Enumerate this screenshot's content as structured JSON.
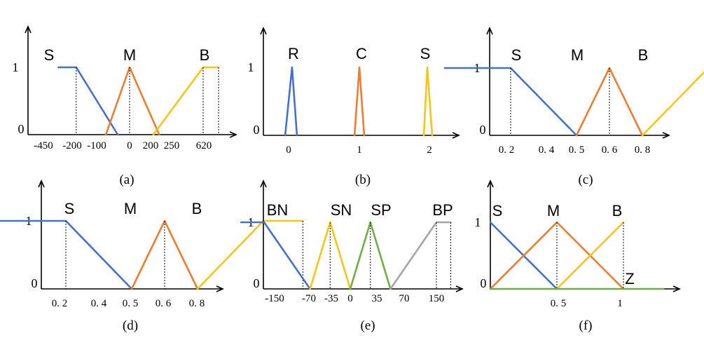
{
  "colors": {
    "blue": "#4472C4",
    "orange": "#ED7D31",
    "yellow": "#F5C518",
    "green": "#70AD47",
    "gray": "#A5A5A5"
  },
  "panels": [
    {
      "id": "a",
      "caption": "(a)",
      "y_labels": [
        "1",
        "0"
      ],
      "x_ticks": [
        "-450",
        "-200",
        "-100",
        "0",
        "200",
        "250",
        "620"
      ],
      "sets": [
        {
          "label": "S",
          "color": "blue",
          "points": [
            [
              -600,
              1
            ],
            [
              -450,
              1
            ],
            [
              -100,
              0
            ]
          ]
        },
        {
          "label": "M",
          "color": "orange",
          "points": [
            [
              -200,
              0
            ],
            [
              0,
              1
            ],
            [
              250,
              0
            ]
          ]
        },
        {
          "label": "B",
          "color": "yellow",
          "points": [
            [
              200,
              0
            ],
            [
              620,
              1
            ],
            [
              750,
              1
            ]
          ]
        }
      ]
    },
    {
      "id": "b",
      "caption": "(b)",
      "y_labels": [
        "1",
        "0"
      ],
      "x_ticks": [
        "0",
        "1",
        "2"
      ],
      "sets": [
        {
          "label": "R",
          "color": "blue",
          "points": [
            [
              -0.05,
              0
            ],
            [
              0.05,
              1
            ],
            [
              0.12,
              0
            ]
          ]
        },
        {
          "label": "C",
          "color": "orange",
          "points": [
            [
              0.95,
              0
            ],
            [
              1.02,
              1
            ],
            [
              1.09,
              0
            ]
          ]
        },
        {
          "label": "S",
          "color": "yellow",
          "points": [
            [
              1.95,
              0
            ],
            [
              2.0,
              1
            ],
            [
              2.07,
              0
            ]
          ]
        }
      ]
    },
    {
      "id": "c",
      "caption": "(c)",
      "y_labels": [
        "1",
        "0"
      ],
      "x_ticks": [
        "0. 2",
        "0. 4",
        "0. 5",
        "0. 6",
        "0. 8"
      ],
      "sets": [
        {
          "label": "S",
          "color": "blue",
          "points": [
            [
              0.0,
              1
            ],
            [
              0.2,
              1
            ],
            [
              0.4,
              0
            ]
          ]
        },
        {
          "label": "M",
          "color": "orange",
          "points": [
            [
              0.4,
              0
            ],
            [
              0.5,
              1
            ],
            [
              0.6,
              0
            ]
          ]
        },
        {
          "label": "B",
          "color": "yellow",
          "points": [
            [
              0.6,
              0
            ],
            [
              0.8,
              1
            ],
            [
              0.92,
              1
            ]
          ]
        }
      ]
    },
    {
      "id": "d",
      "caption": "(d)",
      "y_labels": [
        "1",
        "0"
      ],
      "x_ticks": [
        "0. 2",
        "0. 4",
        "0. 5",
        "0. 6",
        "0. 8"
      ],
      "sets": [
        {
          "label": "S",
          "color": "blue",
          "points": [
            [
              0.0,
              1
            ],
            [
              0.2,
              1
            ],
            [
              0.4,
              0
            ]
          ]
        },
        {
          "label": "M",
          "color": "orange",
          "points": [
            [
              0.4,
              0
            ],
            [
              0.5,
              1
            ],
            [
              0.6,
              0
            ]
          ]
        },
        {
          "label": "B",
          "color": "yellow",
          "points": [
            [
              0.6,
              0
            ],
            [
              0.8,
              1
            ],
            [
              0.92,
              1
            ]
          ]
        }
      ]
    },
    {
      "id": "e",
      "caption": "(e)",
      "y_labels": [
        "1",
        "0"
      ],
      "x_ticks": [
        "-150",
        "-70",
        "-35",
        "0",
        "35",
        "70",
        "150"
      ],
      "sets": [
        {
          "label": "BN",
          "color": "blue",
          "points": [
            [
              -190,
              1
            ],
            [
              -150,
              1
            ],
            [
              -70,
              0
            ]
          ]
        },
        {
          "label": "SN",
          "color": "yellow",
          "points": [
            [
              -70,
              0
            ],
            [
              -35,
              1
            ],
            [
              0,
              0
            ]
          ]
        },
        {
          "label": "SP",
          "color": "green",
          "points": [
            [
              0,
              0
            ],
            [
              35,
              1
            ],
            [
              70,
              0
            ]
          ]
        },
        {
          "label": "BP",
          "color": "gray",
          "points": [
            [
              70,
              0
            ],
            [
              150,
              1
            ],
            [
              175,
              1
            ]
          ]
        }
      ]
    },
    {
      "id": "f",
      "caption": "(f)",
      "y_labels": [
        "1",
        "0"
      ],
      "x_ticks": [
        "0. 5",
        "1"
      ],
      "sets": [
        {
          "label": "S",
          "color": "blue",
          "points": [
            [
              0,
              1
            ],
            [
              0.5,
              0
            ]
          ]
        },
        {
          "label": "M",
          "color": "orange",
          "points": [
            [
              0,
              0
            ],
            [
              0.5,
              1
            ],
            [
              1,
              0
            ]
          ]
        },
        {
          "label": "B",
          "color": "yellow",
          "points": [
            [
              0.5,
              0
            ],
            [
              1,
              1
            ]
          ]
        },
        {
          "label": "Z",
          "color": "green",
          "points": [
            [
              0,
              0
            ],
            [
              1.3,
              0
            ]
          ]
        }
      ]
    }
  ]
}
